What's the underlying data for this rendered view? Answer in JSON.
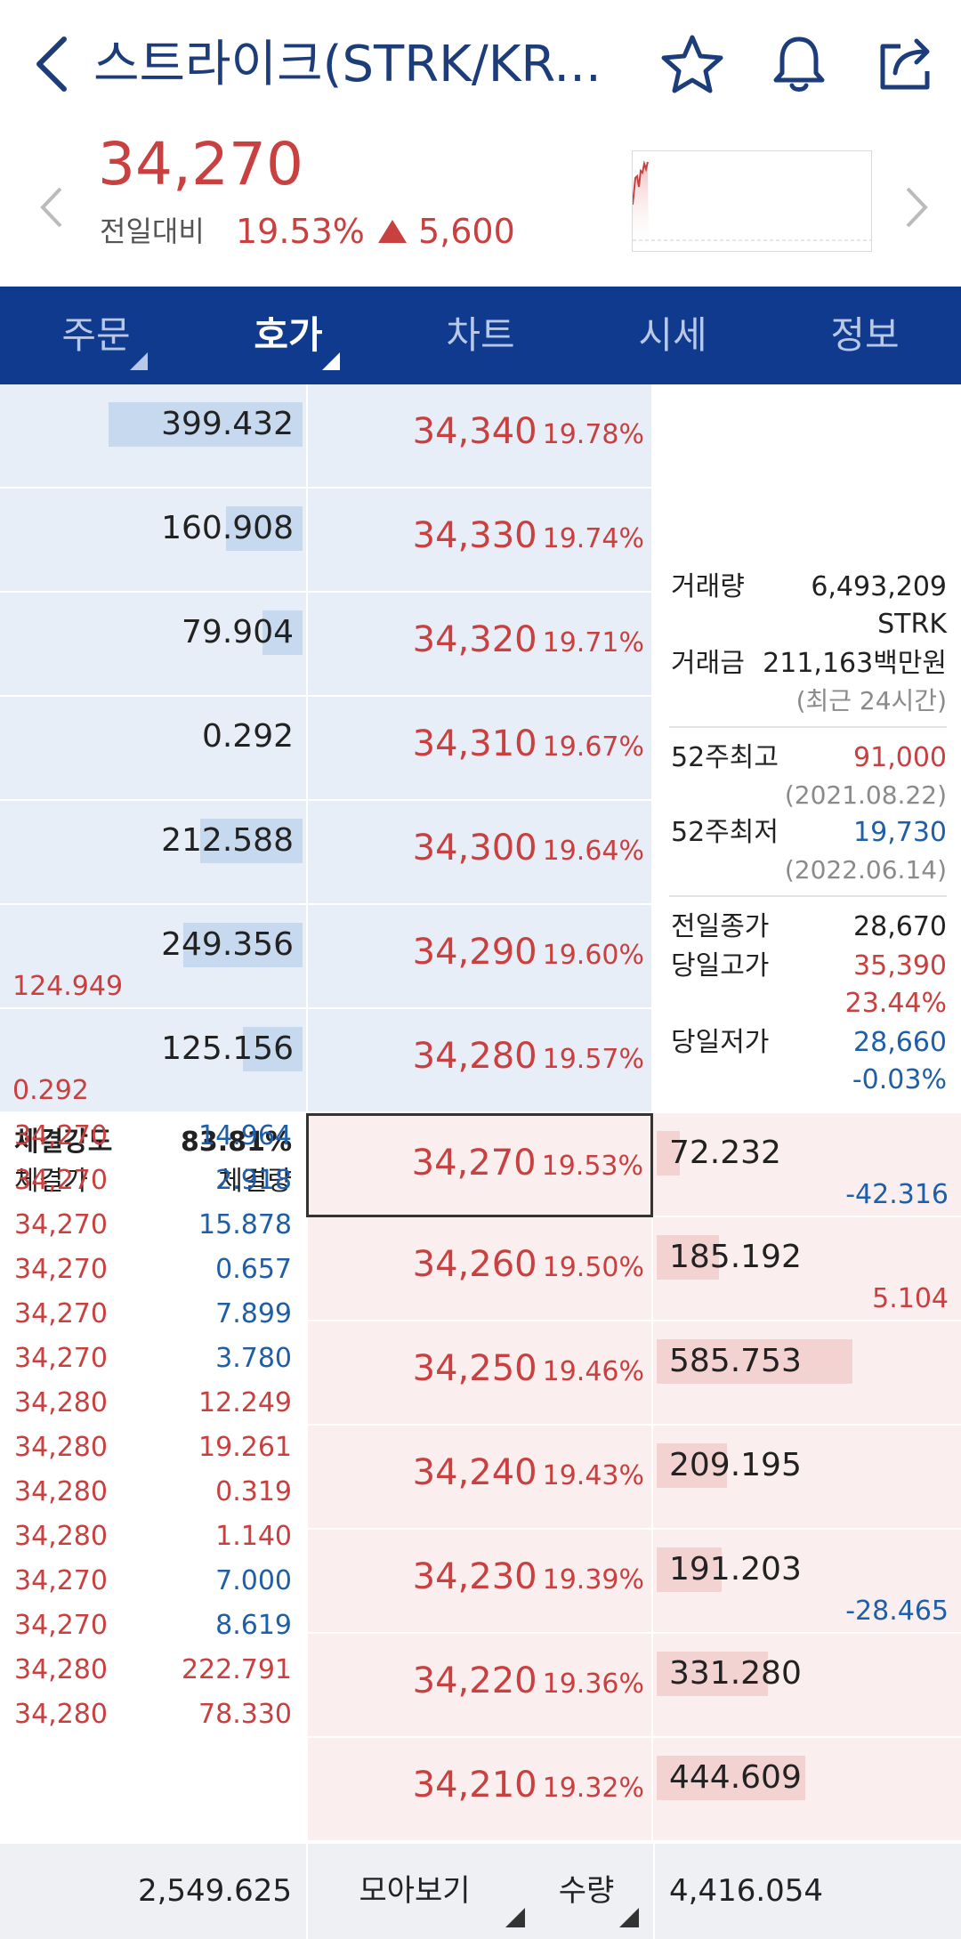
{
  "header": {
    "title": "스트라이크(STRK/KR...",
    "back_icon": "chevron-left-icon",
    "favorite_icon": "star-icon",
    "alert_icon": "bell-icon",
    "share_icon": "share-icon"
  },
  "summary": {
    "price": "34,270",
    "compare_label": "전일대비",
    "change_pct": "19.53%",
    "change_amount": "5,600"
  },
  "tabs": [
    "주문",
    "호가",
    "차트",
    "시세",
    "정보"
  ],
  "active_tab": "호가",
  "asks": [
    {
      "qty": "399.432",
      "price": "34,340",
      "pct": "19.78%",
      "bar": 0.68,
      "sub": ""
    },
    {
      "qty": "160.908",
      "price": "34,330",
      "pct": "19.74%",
      "bar": 0.27,
      "sub": ""
    },
    {
      "qty": "79.904",
      "price": "34,320",
      "pct": "19.71%",
      "bar": 0.14,
      "sub": ""
    },
    {
      "qty": "0.292",
      "price": "34,310",
      "pct": "19.67%",
      "bar": 0.0,
      "sub": ""
    },
    {
      "qty": "212.588",
      "price": "34,300",
      "pct": "19.64%",
      "bar": 0.36,
      "sub": ""
    },
    {
      "qty": "249.356",
      "price": "34,290",
      "pct": "19.60%",
      "bar": 0.42,
      "sub": "124.949"
    },
    {
      "qty": "125.156",
      "price": "34,280",
      "pct": "19.57%",
      "bar": 0.21,
      "sub": "0.292"
    }
  ],
  "bids": [
    {
      "qty": "72.232",
      "price": "34,270",
      "pct": "19.53%",
      "bar": 0.12,
      "sub": "-42.316",
      "sub_color": "blue"
    },
    {
      "qty": "185.192",
      "price": "34,260",
      "pct": "19.50%",
      "bar": 0.32,
      "sub": "5.104",
      "sub_color": "red"
    },
    {
      "qty": "585.753",
      "price": "34,250",
      "pct": "19.46%",
      "bar": 1.0,
      "sub": "",
      "sub_color": ""
    },
    {
      "qty": "209.195",
      "price": "34,240",
      "pct": "19.43%",
      "bar": 0.36,
      "sub": "",
      "sub_color": ""
    },
    {
      "qty": "191.203",
      "price": "34,230",
      "pct": "19.39%",
      "bar": 0.33,
      "sub": "-28.465",
      "sub_color": "blue"
    },
    {
      "qty": "331.280",
      "price": "34,220",
      "pct": "19.36%",
      "bar": 0.57,
      "sub": "",
      "sub_color": ""
    },
    {
      "qty": "444.609",
      "price": "34,210",
      "pct": "19.32%",
      "bar": 0.76,
      "sub": "",
      "sub_color": ""
    }
  ],
  "info": {
    "volume_label": "거래량",
    "volume_value": "6,493,209",
    "volume_unit": "STRK",
    "amount_label": "거래금",
    "amount_value": "211,163백만원",
    "period_note": "(최근 24시간)",
    "high52_label": "52주최고",
    "high52_value": "91,000",
    "high52_date": "(2021.08.22)",
    "low52_label": "52주최저",
    "low52_value": "19,730",
    "low52_date": "(2022.06.14)",
    "prev_close_label": "전일종가",
    "prev_close_value": "28,670",
    "day_high_label": "당일고가",
    "day_high_value": "35,390",
    "day_high_pct": "23.44%",
    "day_low_label": "당일저가",
    "day_low_value": "28,660",
    "day_low_pct": "-0.03%"
  },
  "trades": {
    "strength_label": "체결강도",
    "strength_value": "83.81%",
    "price_header": "체결가",
    "qty_header": "체결량",
    "rows": [
      {
        "price": "34,270",
        "qty": "14.964",
        "color": "blue"
      },
      {
        "price": "34,270",
        "qty": "2.918",
        "color": "blue"
      },
      {
        "price": "34,270",
        "qty": "15.878",
        "color": "blue"
      },
      {
        "price": "34,270",
        "qty": "0.657",
        "color": "blue"
      },
      {
        "price": "34,270",
        "qty": "7.899",
        "color": "blue"
      },
      {
        "price": "34,270",
        "qty": "3.780",
        "color": "blue"
      },
      {
        "price": "34,280",
        "qty": "12.249",
        "color": "red"
      },
      {
        "price": "34,280",
        "qty": "19.261",
        "color": "red"
      },
      {
        "price": "34,280",
        "qty": "0.319",
        "color": "red"
      },
      {
        "price": "34,280",
        "qty": "1.140",
        "color": "red"
      },
      {
        "price": "34,270",
        "qty": "7.000",
        "color": "blue"
      },
      {
        "price": "34,270",
        "qty": "8.619",
        "color": "blue"
      },
      {
        "price": "34,280",
        "qty": "222.791",
        "color": "red"
      },
      {
        "price": "34,280",
        "qty": "78.330",
        "color": "red"
      }
    ]
  },
  "footer": {
    "ask_total": "2,549.625",
    "group_view": "모아보기",
    "qty_mode": "수량",
    "bid_total": "4,416.054"
  },
  "colors": {
    "accent": "#0f3a8e",
    "rise": "#c8403f",
    "fall": "#1f5fa8"
  }
}
